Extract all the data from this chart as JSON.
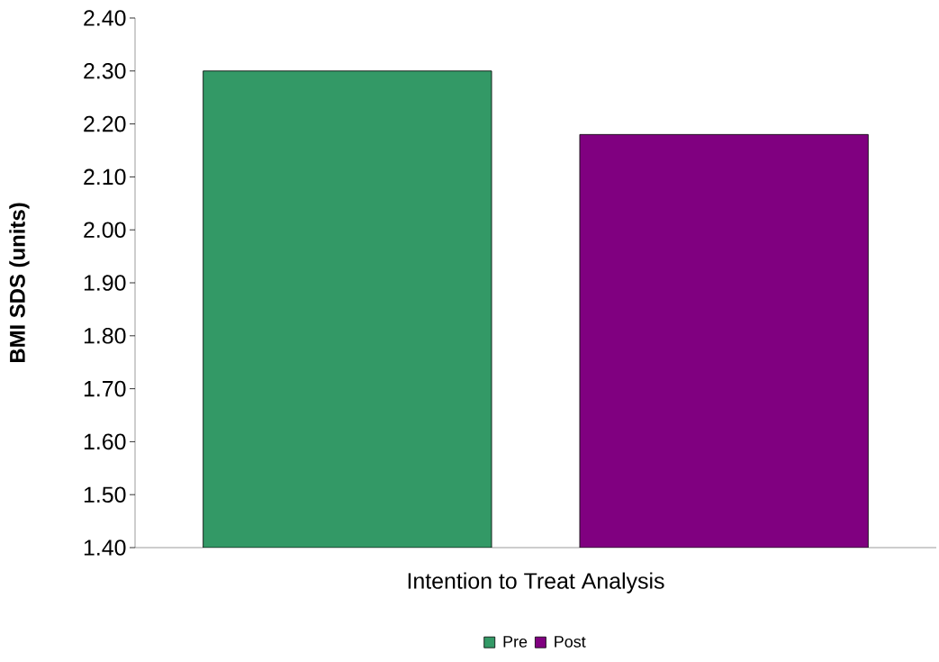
{
  "chart_data": {
    "type": "bar",
    "ylabel": "BMI SDS (units)",
    "categories": [
      "Intention to Treat Analysis"
    ],
    "series": [
      {
        "name": "Pre",
        "color": "#339966",
        "values": [
          2.3
        ]
      },
      {
        "name": "Post",
        "color": "#800080",
        "values": [
          2.18
        ]
      }
    ],
    "ylim": [
      1.4,
      2.4
    ],
    "yticks": [
      {
        "value": 1.4,
        "label": "1.40"
      },
      {
        "value": 1.5,
        "label": "1.50"
      },
      {
        "value": 1.6,
        "label": "1.60"
      },
      {
        "value": 1.7,
        "label": "1.70"
      },
      {
        "value": 1.8,
        "label": "1.80"
      },
      {
        "value": 1.9,
        "label": "1.90"
      },
      {
        "value": 2.0,
        "label": "2.00"
      },
      {
        "value": 2.1,
        "label": "2.10"
      },
      {
        "value": 2.2,
        "label": "2.20"
      },
      {
        "value": 2.3,
        "label": "2.30"
      },
      {
        "value": 2.4,
        "label": "2.40"
      }
    ],
    "legend": "bottom"
  }
}
